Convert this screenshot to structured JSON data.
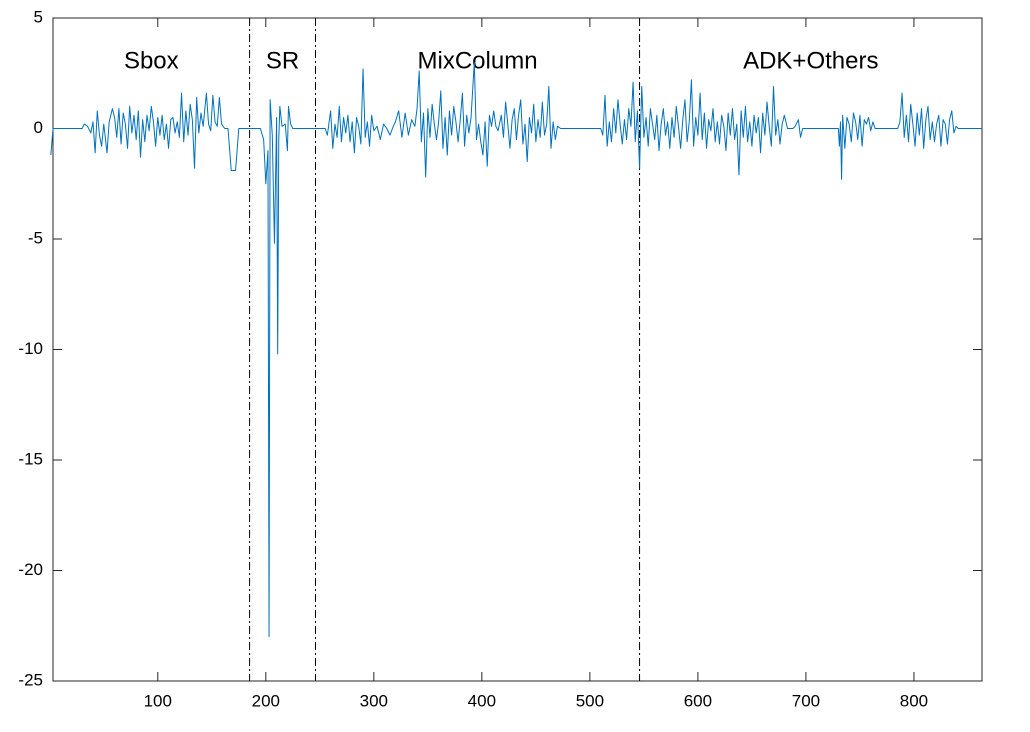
{
  "chart_data": {
    "type": "line",
    "x": [
      1,
      3,
      30,
      32,
      35,
      38,
      40,
      42,
      44,
      46,
      48,
      50,
      53,
      55,
      58,
      60,
      62,
      64,
      66,
      68,
      70,
      72,
      74,
      76,
      78,
      80,
      82,
      84,
      86,
      88,
      90,
      92,
      94,
      96,
      98,
      100,
      102,
      104,
      106,
      108,
      110,
      112,
      114,
      116,
      118,
      120,
      122,
      124,
      126,
      128,
      130,
      132,
      134,
      136,
      138,
      140,
      142,
      145,
      147,
      149,
      151,
      153,
      155,
      157,
      159,
      162,
      165,
      168,
      172,
      175,
      185,
      190,
      195,
      198,
      200,
      202,
      203,
      204,
      206,
      208,
      210,
      211,
      212,
      213,
      215,
      218,
      220,
      221,
      223,
      225,
      255,
      257,
      260,
      262,
      264,
      266,
      268,
      270,
      272,
      274,
      276,
      278,
      280,
      282,
      284,
      286,
      288,
      290,
      292,
      294,
      296,
      298,
      300,
      303,
      306,
      309,
      312,
      315,
      318,
      320,
      323,
      326,
      329,
      332,
      335,
      338,
      340,
      342,
      344,
      346,
      348,
      350,
      352,
      354,
      356,
      358,
      360,
      362,
      364,
      366,
      368,
      370,
      372,
      374,
      376,
      378,
      380,
      382,
      384,
      386,
      388,
      390,
      393,
      395,
      397,
      399,
      401,
      403,
      405,
      407,
      409,
      411,
      413,
      415,
      418,
      420,
      422,
      424,
      426,
      428,
      430,
      432,
      434,
      436,
      438,
      440,
      442,
      444,
      446,
      448,
      450,
      452,
      454,
      456,
      458,
      460,
      462,
      464,
      466,
      468,
      470,
      473,
      510,
      512,
      514,
      516,
      518,
      520,
      522,
      524,
      526,
      528,
      530,
      532,
      534,
      536,
      538,
      540,
      542,
      544,
      546,
      548,
      550,
      552,
      554,
      556,
      558,
      560,
      562,
      564,
      566,
      568,
      570,
      572,
      574,
      576,
      578,
      580,
      582,
      584,
      586,
      588,
      590,
      592,
      594,
      596,
      598,
      600,
      602,
      604,
      606,
      608,
      610,
      612,
      614,
      616,
      618,
      620,
      622,
      624,
      626,
      628,
      630,
      632,
      634,
      636,
      638,
      640,
      642,
      644,
      646,
      648,
      650,
      652,
      654,
      656,
      658,
      660,
      662,
      664,
      666,
      668,
      670,
      672,
      674,
      676,
      678,
      680,
      683,
      688,
      690,
      693,
      695,
      697,
      700,
      730,
      731,
      732,
      733,
      734,
      736,
      738,
      740,
      742,
      744,
      746,
      748,
      750,
      752,
      754,
      756,
      758,
      760,
      762,
      764,
      770,
      780,
      785,
      787,
      789,
      791,
      793,
      795,
      797,
      799,
      801,
      803,
      805,
      807,
      809,
      811,
      813,
      815,
      817,
      819,
      821,
      823,
      825,
      827,
      829,
      831,
      833,
      835,
      837,
      839,
      841,
      863
    ],
    "values": [
      -1.2,
      0,
      0,
      0.2,
      0.1,
      -0.2,
      0.3,
      -1.1,
      0.8,
      -0.3,
      -0.8,
      0.2,
      -1.1,
      0.3,
      0.9,
      0.5,
      -0.4,
      0.9,
      -0.7,
      0.7,
      0.2,
      -0.9,
      1.0,
      -0.2,
      0.6,
      -0.5,
      0.8,
      -1.3,
      0.4,
      -0.6,
      0.6,
      -0.1,
      1.0,
      0.3,
      -0.8,
      0.5,
      -0.3,
      0.6,
      -0.5,
      0.2,
      -0.9,
      0.4,
      0.5,
      -0.2,
      0.3,
      -0.4,
      1.6,
      -0.6,
      0.8,
      -0.3,
      1.1,
      0.4,
      -1.8,
      1.4,
      -0.2,
      0.7,
      0.1,
      1.6,
      0.2,
      -0.1,
      1.5,
      0.3,
      0.1,
      1.4,
      0.2,
      0,
      0,
      -1.9,
      -1.9,
      0,
      0,
      0,
      0,
      -0.5,
      -2.5,
      -1.0,
      -23,
      1.3,
      -0.3,
      -5.2,
      0.5,
      -10.2,
      -0.5,
      1.0,
      0.1,
      0.2,
      -1.0,
      1.0,
      0.2,
      0,
      0,
      -0.3,
      0.8,
      -0.9,
      0.2,
      -0.4,
      1.0,
      -0.6,
      0.5,
      -0.2,
      0.6,
      -0.6,
      0.3,
      -1.1,
      0.5,
      0.1,
      -0.7,
      2.7,
      -0.4,
      0.3,
      -0.8,
      0.6,
      -0.1,
      0.1,
      -0.5,
      0.2,
      0,
      -0.3,
      0.1,
      0.3,
      0.8,
      -0.4,
      0.7,
      -0.3,
      0.4,
      0.1,
      0.9,
      2.6,
      -0.6,
      0.7,
      -2.2,
      0.9,
      -0.4,
      1.1,
      0.2,
      -0.5,
      0.3,
      1.7,
      -0.9,
      0.5,
      -1.2,
      0.8,
      -0.3,
      1.0,
      0.3,
      -0.6,
      0.4,
      1.6,
      -0.8,
      0.6,
      -0.2,
      0.5,
      3.0,
      -0.5,
      0.2,
      -0.6,
      -1.2,
      0.3,
      -1.7,
      0.6,
      0.1,
      0.8,
      0.1,
      -0.1,
      0.6,
      -0.4,
      1.2,
      0.2,
      -0.9,
      0.4,
      0.9,
      -0.5,
      0.6,
      1.3,
      -0.7,
      0.2,
      -1.5,
      0.5,
      -0.2,
      1.1,
      -0.6,
      0.4,
      -0.4,
      1.2,
      -0.3,
      0.2,
      1.9,
      -0.9,
      0.3,
      -0.5,
      0.1,
      0,
      0,
      -0.3,
      1.5,
      -0.8,
      0.3,
      -0.6,
      0.9,
      -0.2,
      1.3,
      0.2,
      -0.7,
      0.4,
      -0.5,
      0.9,
      0.1,
      2.1,
      -0.6,
      0.8,
      -1.8,
      1.9,
      -0.4,
      0.5,
      -0.8,
      0.9,
      0.2,
      -0.5,
      0.6,
      -1.0,
      0.2,
      0.9,
      -0.3,
      0.3,
      -0.9,
      0.5,
      -0.4,
      1.0,
      0.1,
      -0.9,
      0.4,
      1.3,
      -0.6,
      0.3,
      2.2,
      -0.8,
      0.5,
      -0.3,
      1.6,
      -0.5,
      0.7,
      -0.9,
      0.4,
      -0.1,
      0.9,
      -0.6,
      0.3,
      -0.7,
      0.6,
      0.1,
      -1.0,
      0.7,
      -0.3,
      0.9,
      -0.5,
      0.2,
      -2.1,
      0.8,
      -0.4,
      1.0,
      -0.6,
      0.3,
      -0.8,
      0.6,
      -0.2,
      0.5,
      -1.1,
      0.7,
      -0.3,
      1.2,
      0.1,
      -0.8,
      1.9,
      -0.3,
      0.4,
      -0.7,
      0.2,
      0.6,
      0,
      0,
      0.1,
      0.4,
      -0.4,
      0,
      0,
      0,
      -0.8,
      0.3,
      -2.3,
      0.6,
      -0.9,
      0.5,
      0.2,
      -0.6,
      0.7,
      0.3,
      -0.5,
      0.6,
      -0.8,
      0.4,
      0.2,
      0.5,
      -0.1,
      0.3,
      0,
      0,
      0,
      0,
      0.3,
      1.6,
      -0.4,
      0.6,
      -0.6,
      1.1,
      0.2,
      -0.8,
      0.7,
      -0.3,
      0.9,
      -0.9,
      0.4,
      1.0,
      -0.5,
      0.3,
      -0.6,
      0.2,
      0.6,
      -0.8,
      0.4,
      0.2,
      -0.7,
      0.4,
      0.8,
      -0.2,
      0.1,
      0,
      0
    ],
    "color": "#0072bd",
    "xlim": [
      3,
      863
    ],
    "xticks": [
      100,
      200,
      300,
      400,
      500,
      600,
      700,
      800
    ],
    "ylim": [
      -25,
      5
    ],
    "yticks": [
      5,
      0,
      -5,
      -10,
      -15,
      -20,
      -25
    ],
    "vlines": [
      185,
      246,
      546
    ],
    "regions": [
      "Sbox",
      "SR",
      "MixColumn",
      "ADK+Others"
    ]
  }
}
